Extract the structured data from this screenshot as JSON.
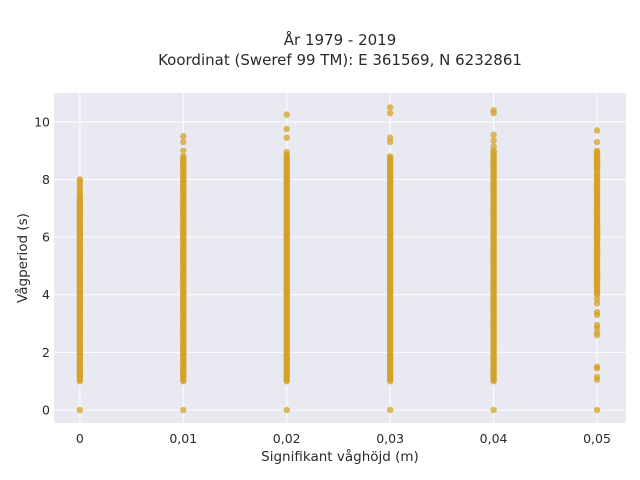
{
  "chart_data": {
    "type": "scatter",
    "title_line1": "År 1979 - 2019",
    "title_line2": "Koordinat (Sweref 99 TM): E 361569, N 6232861",
    "xlabel": "Signifikant våghöjd (m)",
    "ylabel": "Vågperiod (s)",
    "x_tick_labels": [
      "0",
      "0,01",
      "0,02",
      "0,03",
      "0,04",
      "0,05"
    ],
    "x_tick_values": [
      0,
      0.01,
      0.02,
      0.03,
      0.04,
      0.05
    ],
    "y_tick_labels": [
      "0",
      "2",
      "4",
      "6",
      "8",
      "10"
    ],
    "y_tick_values": [
      0,
      2,
      4,
      6,
      8,
      10
    ],
    "xlim": [
      -0.0025,
      0.0528
    ],
    "ylim": [
      -0.45,
      11.0
    ],
    "grid": true,
    "background": "#e9e9f1",
    "point_color": "#d4a227",
    "series": [
      {
        "x": 0,
        "dense_ranges": [
          [
            1.0,
            7.5
          ]
        ],
        "points": [
          0,
          7.6,
          7.7,
          7.8,
          7.85,
          7.95,
          8.0
        ]
      },
      {
        "x": 0.01,
        "dense_ranges": [
          [
            1.0,
            8.75
          ]
        ],
        "points": [
          0,
          8.8,
          9.0,
          9.3,
          9.5
        ]
      },
      {
        "x": 0.02,
        "dense_ranges": [
          [
            1.0,
            8.85
          ]
        ],
        "points": [
          0,
          8.95,
          9.45,
          9.75,
          10.25
        ]
      },
      {
        "x": 0.03,
        "dense_ranges": [
          [
            1.0,
            8.8
          ]
        ],
        "points": [
          0,
          9.3,
          9.45,
          10.3,
          10.5
        ]
      },
      {
        "x": 0.04,
        "dense_ranges": [
          [
            1.0,
            9.0
          ]
        ],
        "points": [
          0,
          9.15,
          9.35,
          9.55,
          10.3,
          10.4
        ]
      },
      {
        "x": 0.05,
        "dense_ranges": [
          [
            4.0,
            8.2
          ],
          [
            5.9,
            6.25
          ],
          [
            8.3,
            8.95
          ]
        ],
        "points": [
          0,
          1.05,
          1.15,
          1.45,
          1.5,
          2.6,
          2.7,
          2.85,
          2.95,
          3.3,
          3.4,
          3.7,
          3.85,
          4.6,
          5.0,
          5.5,
          8.5,
          8.75,
          9.0,
          9.3,
          9.7
        ]
      }
    ]
  }
}
